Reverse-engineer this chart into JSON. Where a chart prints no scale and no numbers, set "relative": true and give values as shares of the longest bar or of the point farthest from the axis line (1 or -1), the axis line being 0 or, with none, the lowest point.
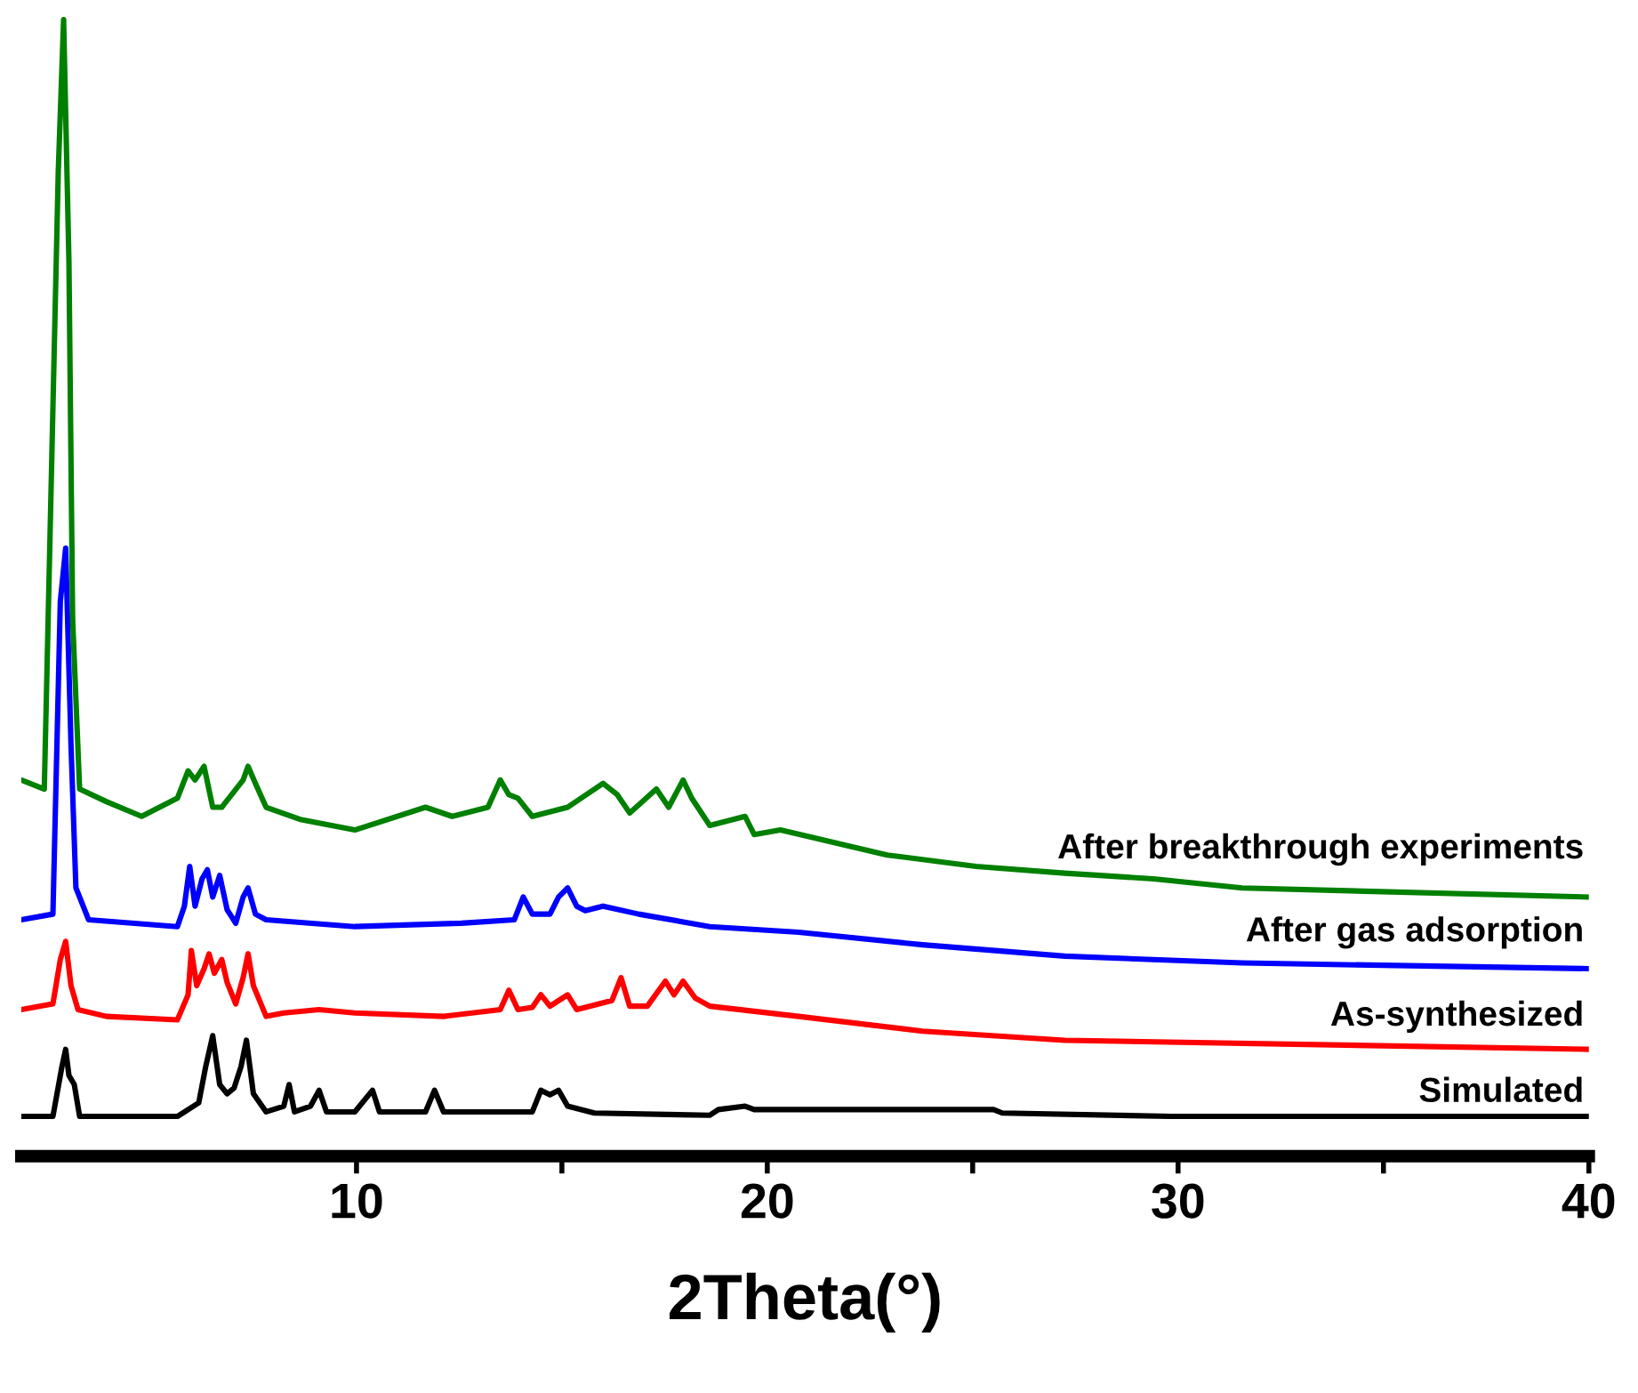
{
  "chart_data": {
    "type": "line",
    "relative": true,
    "xlabel": "2Theta(°)",
    "xlim": [
      1.84,
      40
    ],
    "xticks": [
      10,
      {
        "value": 15,
        "label": null
      },
      20,
      {
        "value": 25,
        "label": null
      },
      30,
      {
        "value": 35,
        "label": null
      },
      40
    ],
    "tick_labels": "x",
    "grid": false,
    "legend": false,
    "marker": "none",
    "line_style": "solid",
    "series": [
      {
        "name": "Simulated",
        "color": "#000000",
        "x": [
          1.84,
          2.61,
          2.83,
          2.92,
          3.0,
          3.13,
          3.26,
          3.48,
          5.64,
          6.16,
          6.33,
          6.5,
          6.67,
          6.85,
          7.02,
          7.19,
          7.32,
          7.49,
          7.8,
          8.23,
          8.36,
          8.49,
          8.88,
          9.09,
          9.27,
          9.96,
          10.39,
          10.56,
          11.68,
          11.9,
          12.12,
          14.28,
          14.49,
          14.71,
          14.92,
          15.14,
          15.79,
          18.6,
          18.81,
          19.46,
          19.68,
          25.51,
          25.72,
          29.83,
          40
        ],
        "values": [
          0.035,
          0.035,
          0.079,
          0.094,
          0.071,
          0.063,
          0.035,
          0.035,
          0.035,
          0.047,
          0.079,
          0.106,
          0.063,
          0.055,
          0.06,
          0.079,
          0.102,
          0.055,
          0.039,
          0.044,
          0.063,
          0.039,
          0.044,
          0.058,
          0.039,
          0.039,
          0.058,
          0.039,
          0.039,
          0.058,
          0.039,
          0.039,
          0.058,
          0.054,
          0.058,
          0.044,
          0.038,
          0.036,
          0.041,
          0.044,
          0.041,
          0.041,
          0.038,
          0.035,
          0.035
        ]
      },
      {
        "name": "As-synthesized",
        "color": "#ff0000",
        "x": [
          1.84,
          2.61,
          2.79,
          2.92,
          3.05,
          3.22,
          3.91,
          5.64,
          5.9,
          5.98,
          6.11,
          6.29,
          6.41,
          6.54,
          6.72,
          6.85,
          7.06,
          7.24,
          7.36,
          7.49,
          7.8,
          8.23,
          9.09,
          9.96,
          12.12,
          13.5,
          13.71,
          13.93,
          14.28,
          14.49,
          14.71,
          15.14,
          15.36,
          16.22,
          16.44,
          16.65,
          17.08,
          17.52,
          17.73,
          17.95,
          18.25,
          18.6,
          20.76,
          23.78,
          27.24,
          40
        ],
        "values": [
          0.129,
          0.134,
          0.173,
          0.189,
          0.15,
          0.129,
          0.123,
          0.12,
          0.142,
          0.181,
          0.15,
          0.165,
          0.178,
          0.161,
          0.173,
          0.153,
          0.134,
          0.157,
          0.178,
          0.15,
          0.123,
          0.126,
          0.129,
          0.126,
          0.123,
          0.129,
          0.146,
          0.129,
          0.131,
          0.142,
          0.132,
          0.142,
          0.129,
          0.137,
          0.157,
          0.132,
          0.132,
          0.154,
          0.142,
          0.154,
          0.139,
          0.132,
          0.123,
          0.11,
          0.102,
          0.094
        ]
      },
      {
        "name": "After gas adsorption",
        "color": "#0000ff",
        "x": [
          1.84,
          2.61,
          2.79,
          2.92,
          3.05,
          3.17,
          3.48,
          5.64,
          5.81,
          5.94,
          6.07,
          6.24,
          6.37,
          6.5,
          6.67,
          6.85,
          7.06,
          7.24,
          7.36,
          7.54,
          7.8,
          9.96,
          12.55,
          13.84,
          14.06,
          14.28,
          14.71,
          14.92,
          15.14,
          15.36,
          15.57,
          16.0,
          16.87,
          18.6,
          20.76,
          23.78,
          27.24,
          31.56,
          40
        ],
        "values": [
          0.208,
          0.213,
          0.488,
          0.535,
          0.362,
          0.236,
          0.208,
          0.202,
          0.22,
          0.255,
          0.22,
          0.244,
          0.252,
          0.228,
          0.247,
          0.217,
          0.205,
          0.228,
          0.236,
          0.213,
          0.208,
          0.202,
          0.205,
          0.208,
          0.228,
          0.213,
          0.213,
          0.228,
          0.236,
          0.22,
          0.216,
          0.22,
          0.213,
          0.202,
          0.197,
          0.186,
          0.176,
          0.17,
          0.165
        ]
      },
      {
        "name": "After breakthrough experiments",
        "color": "#008000",
        "x": [
          1.84,
          2.4,
          2.74,
          2.87,
          3.0,
          3.09,
          3.26,
          3.91,
          4.77,
          5.64,
          5.9,
          6.07,
          6.29,
          6.5,
          6.72,
          7.24,
          7.36,
          7.54,
          7.8,
          8.66,
          9.96,
          11.68,
          12.33,
          13.2,
          13.5,
          13.71,
          13.93,
          14.28,
          15.14,
          16.0,
          16.35,
          16.65,
          17.3,
          17.6,
          17.95,
          18.16,
          18.6,
          19.46,
          19.68,
          20.32,
          22.92,
          25.08,
          27.24,
          29.4,
          31.56,
          40
        ],
        "values": [
          0.331,
          0.323,
          0.866,
          1.0,
          0.787,
          0.472,
          0.323,
          0.312,
          0.299,
          0.315,
          0.339,
          0.331,
          0.343,
          0.307,
          0.307,
          0.331,
          0.343,
          0.328,
          0.307,
          0.296,
          0.287,
          0.307,
          0.299,
          0.307,
          0.331,
          0.318,
          0.315,
          0.299,
          0.307,
          0.328,
          0.318,
          0.302,
          0.323,
          0.307,
          0.331,
          0.315,
          0.291,
          0.299,
          0.283,
          0.287,
          0.265,
          0.255,
          0.249,
          0.244,
          0.236,
          0.228
        ]
      }
    ]
  }
}
